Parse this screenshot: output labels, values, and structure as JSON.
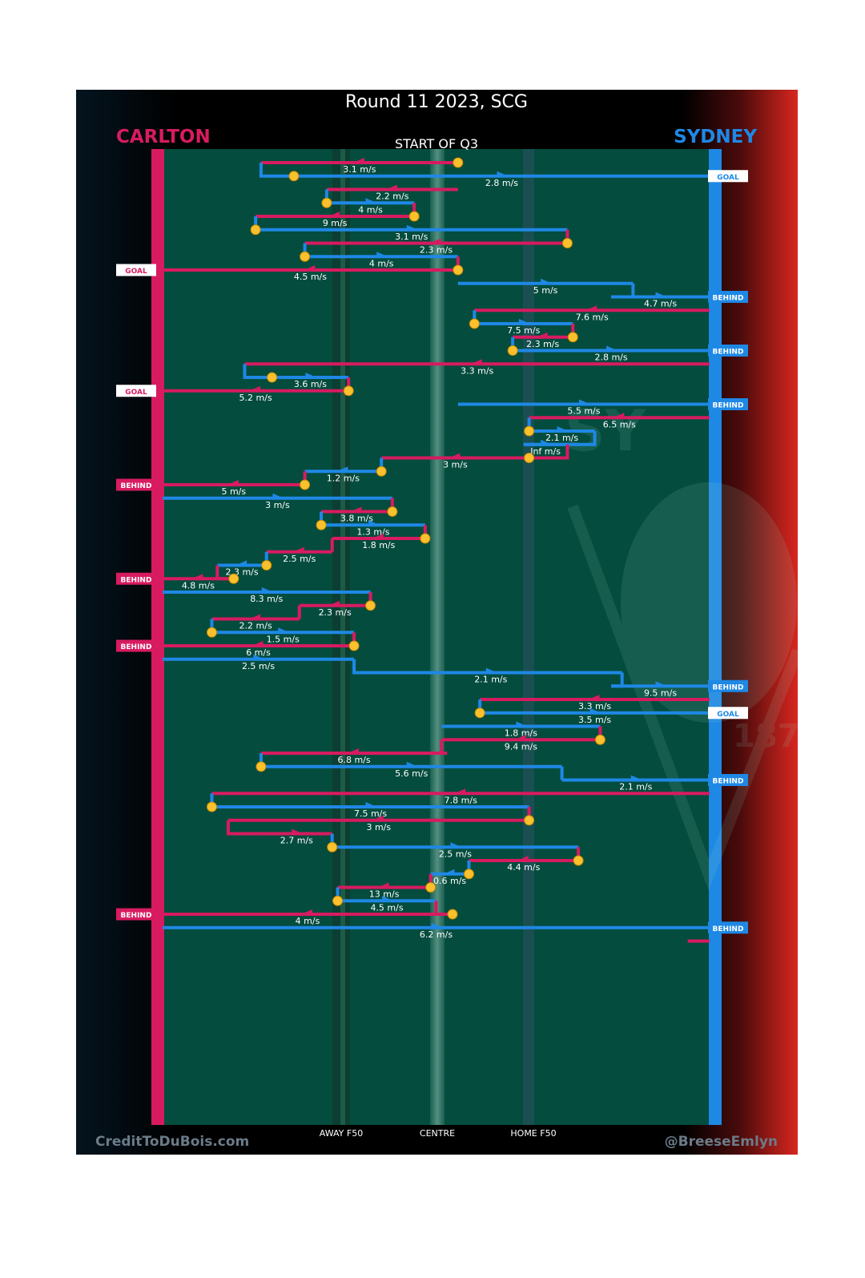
{
  "title": "Round 11 2023, SCG",
  "subtitle": "START OF Q3",
  "teams": {
    "away": {
      "name": "CARLTON",
      "color": "#d81b60"
    },
    "home": {
      "name": "SYDNEY",
      "color": "#1e88e5"
    }
  },
  "zones": [
    "AWAY F50",
    "CENTRE",
    "HOME F50"
  ],
  "credits": {
    "left": "CreditToDuBois.com",
    "right": "@BreeseEmlyn"
  },
  "colors": {
    "field": "#044c3e",
    "ball": "#fbc02d",
    "goal_tag_bg": "#ffffff",
    "behind_tag_bg_home": "#1e88e5",
    "behind_tag_bg_away": "#d81b60"
  },
  "chart_data": {
    "type": "line",
    "x_description": "horizontal position along field (0 = Carlton goal, 100 = Sydney goal)",
    "chains": [
      {
        "team": "away",
        "speed": "3.1 m/s",
        "from": 54,
        "to": 18
      },
      {
        "team": "home",
        "speed": "2.8 m/s",
        "from": 24,
        "to": 100,
        "end": "GOAL"
      },
      {
        "team": "away",
        "speed": "2.2 m/s",
        "from": 54,
        "to": 30
      },
      {
        "team": "home",
        "speed": "4 m/s",
        "from": 30,
        "to": 46
      },
      {
        "team": "away",
        "speed": "9 m/s",
        "from": 46,
        "to": 17
      },
      {
        "team": "home",
        "speed": "3.1 m/s",
        "from": 17,
        "to": 74
      },
      {
        "team": "away",
        "speed": "2.3 m/s",
        "from": 74,
        "to": 26
      },
      {
        "team": "home",
        "speed": "4 m/s",
        "from": 26,
        "to": 54
      },
      {
        "team": "away",
        "speed": "4.5 m/s",
        "from": 54,
        "to": 0,
        "end": "GOAL"
      },
      {
        "team": "home",
        "speed": "5 m/s",
        "from": 54,
        "to": 86
      },
      {
        "team": "home",
        "speed": "4.7 m/s",
        "from": 82,
        "to": 100,
        "end": "BEHIND"
      },
      {
        "team": "away",
        "speed": "7.6 m/s",
        "from": 100,
        "to": 57
      },
      {
        "team": "home",
        "speed": "7.5 m/s",
        "from": 57,
        "to": 75
      },
      {
        "team": "away",
        "speed": "2.3 m/s",
        "from": 75,
        "to": 64
      },
      {
        "team": "home",
        "speed": "2.8 m/s",
        "from": 64,
        "to": 100,
        "end": "BEHIND"
      },
      {
        "team": "away",
        "speed": "3.3 m/s",
        "from": 100,
        "to": 15
      },
      {
        "team": "home",
        "speed": "3.6 m/s",
        "from": 20,
        "to": 34
      },
      {
        "team": "away",
        "speed": "5.2 m/s",
        "from": 34,
        "to": 0,
        "end": "GOAL"
      },
      {
        "team": "home",
        "speed": "5.5 m/s",
        "from": 54,
        "to": 100,
        "end": "BEHIND"
      },
      {
        "team": "away",
        "speed": "6.5 m/s",
        "from": 100,
        "to": 67
      },
      {
        "team": "home",
        "speed": "2.1 m/s",
        "from": 67,
        "to": 79
      },
      {
        "team": "home",
        "speed": "Inf m/s",
        "from": 66,
        "to": 74
      },
      {
        "team": "away",
        "speed": "3 m/s",
        "from": 67,
        "to": 40
      },
      {
        "team": "home",
        "speed": "1.2 m/s",
        "from": 40,
        "to": 26
      },
      {
        "team": "away",
        "speed": "5 m/s",
        "from": 26,
        "to": 0,
        "end": "BEHIND"
      },
      {
        "team": "home",
        "speed": "3 m/s",
        "from": 0,
        "to": 42
      },
      {
        "team": "away",
        "speed": "3.8 m/s",
        "from": 42,
        "to": 29
      },
      {
        "team": "home",
        "speed": "1.3 m/s",
        "from": 29,
        "to": 48
      },
      {
        "team": "away",
        "speed": "1.8 m/s",
        "from": 48,
        "to": 31
      },
      {
        "team": "away",
        "speed": "2.5 m/s",
        "from": 31,
        "to": 19
      },
      {
        "team": "home",
        "speed": "2.3 m/s",
        "from": 19,
        "to": 10
      },
      {
        "team": "away",
        "speed": "4.8 m/s",
        "from": 13,
        "to": 0,
        "end": "BEHIND"
      },
      {
        "team": "home",
        "speed": "8.3 m/s",
        "from": 0,
        "to": 38
      },
      {
        "team": "away",
        "speed": "2.3 m/s",
        "from": 38,
        "to": 25
      },
      {
        "team": "away",
        "speed": "2.2 m/s",
        "from": 25,
        "to": 9
      },
      {
        "team": "home",
        "speed": "1.5 m/s",
        "from": 9,
        "to": 35
      },
      {
        "team": "away",
        "speed": "6 m/s",
        "from": 35,
        "to": 0,
        "end": "BEHIND"
      },
      {
        "team": "home",
        "speed": "2.5 m/s",
        "from": 0,
        "to": 35
      },
      {
        "team": "home",
        "speed": "2.1 m/s",
        "from": 36,
        "to": 84
      },
      {
        "team": "home",
        "speed": "9.5 m/s",
        "from": 82,
        "to": 100,
        "end": "BEHIND"
      },
      {
        "team": "away",
        "speed": "3.3 m/s",
        "from": 100,
        "to": 58
      },
      {
        "team": "home",
        "speed": "3.5 m/s",
        "from": 58,
        "to": 100,
        "end": "GOAL"
      },
      {
        "team": "home",
        "speed": "1.8 m/s",
        "from": 51,
        "to": 80
      },
      {
        "team": "away",
        "speed": "9.4 m/s",
        "from": 80,
        "to": 51
      },
      {
        "team": "away",
        "speed": "6.8 m/s",
        "from": 52,
        "to": 18
      },
      {
        "team": "home",
        "speed": "5.6 m/s",
        "from": 18,
        "to": 73
      },
      {
        "team": "home",
        "speed": "2.1 m/s",
        "from": 73,
        "to": 100,
        "end": "BEHIND"
      },
      {
        "team": "away",
        "speed": "7.8 m/s",
        "from": 100,
        "to": 9
      },
      {
        "team": "home",
        "speed": "7.5 m/s",
        "from": 9,
        "to": 67
      },
      {
        "team": "away",
        "speed": "3 m/s",
        "from": 67,
        "to": 12
      },
      {
        "team": "away",
        "speed": "2.7 m/s",
        "from": 18,
        "to": 31
      },
      {
        "team": "home",
        "speed": "2.5 m/s",
        "from": 31,
        "to": 76
      },
      {
        "team": "away",
        "speed": "4.4 m/s",
        "from": 76,
        "to": 56
      },
      {
        "team": "home",
        "speed": "0.6 m/s",
        "from": 56,
        "to": 49
      },
      {
        "team": "away",
        "speed": "13 m/s",
        "from": 49,
        "to": 32
      },
      {
        "team": "home",
        "speed": "4.5 m/s",
        "from": 32,
        "to": 50
      },
      {
        "team": "away",
        "speed": "4 m/s",
        "from": 53,
        "to": 0,
        "end": "BEHIND"
      },
      {
        "team": "home",
        "speed": "6.2 m/s",
        "from": 0,
        "to": 100,
        "end": "BEHIND"
      },
      {
        "team": "away",
        "speed": "",
        "from": 100,
        "to": 96
      }
    ]
  }
}
